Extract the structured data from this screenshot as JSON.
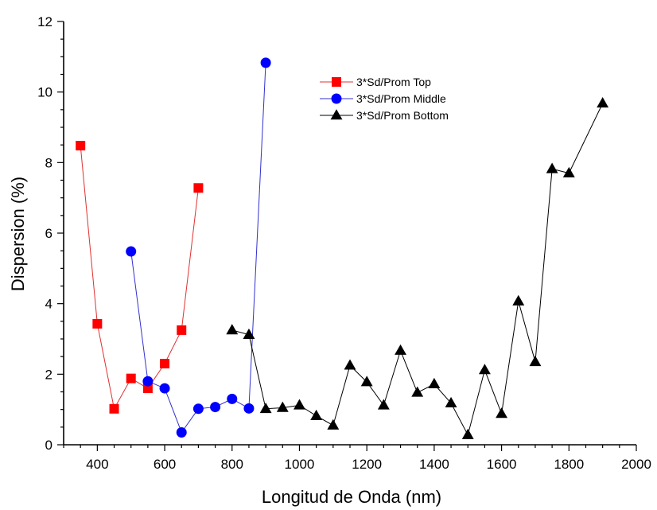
{
  "chart_data": {
    "type": "line",
    "title": "",
    "xlabel": "Longitud de Onda (nm)",
    "ylabel": "Dispersion (%)",
    "xlim": [
      300,
      2000
    ],
    "ylim": [
      0,
      12
    ],
    "xticks": [
      400,
      600,
      800,
      1000,
      1200,
      1400,
      1600,
      1800,
      2000
    ],
    "yticks": [
      0,
      2,
      4,
      6,
      8,
      10,
      12
    ],
    "xtick_labels": [
      "400",
      "600",
      "800",
      "1000",
      "1200",
      "1400",
      "1600",
      "1800",
      "2000"
    ],
    "ytick_labels": [
      "0",
      "2",
      "4",
      "6",
      "8",
      "10",
      "12"
    ],
    "grid": false,
    "legend_position": "top-center",
    "series": [
      {
        "name": "3*Sd/Prom Top",
        "marker": "square",
        "color": "#ff0000",
        "line_color": "#e03030",
        "x": [
          350,
          400,
          450,
          500,
          550,
          600,
          650,
          700
        ],
        "y": [
          8.48,
          3.43,
          1.02,
          1.88,
          1.6,
          2.3,
          3.25,
          7.28
        ]
      },
      {
        "name": "3*Sd/Prom Middle",
        "marker": "circle",
        "color": "#0000ff",
        "line_color": "#3030d0",
        "x": [
          500,
          550,
          600,
          650,
          700,
          750,
          800,
          850,
          900
        ],
        "y": [
          5.48,
          1.8,
          1.6,
          0.35,
          1.02,
          1.07,
          1.3,
          1.03,
          10.83
        ]
      },
      {
        "name": "3*Sd/Prom Bottom",
        "marker": "triangle",
        "color": "#000000",
        "line_color": "#000000",
        "x": [
          800,
          850,
          900,
          950,
          1000,
          1050,
          1100,
          1150,
          1200,
          1250,
          1300,
          1350,
          1400,
          1450,
          1500,
          1550,
          1600,
          1650,
          1700,
          1750,
          1800,
          1900
        ],
        "y": [
          3.25,
          3.12,
          1.02,
          1.05,
          1.12,
          0.82,
          0.55,
          2.25,
          1.78,
          1.12,
          2.67,
          1.48,
          1.72,
          1.18,
          0.28,
          2.12,
          0.88,
          4.07,
          2.35,
          7.82,
          7.7,
          9.68
        ]
      }
    ]
  }
}
